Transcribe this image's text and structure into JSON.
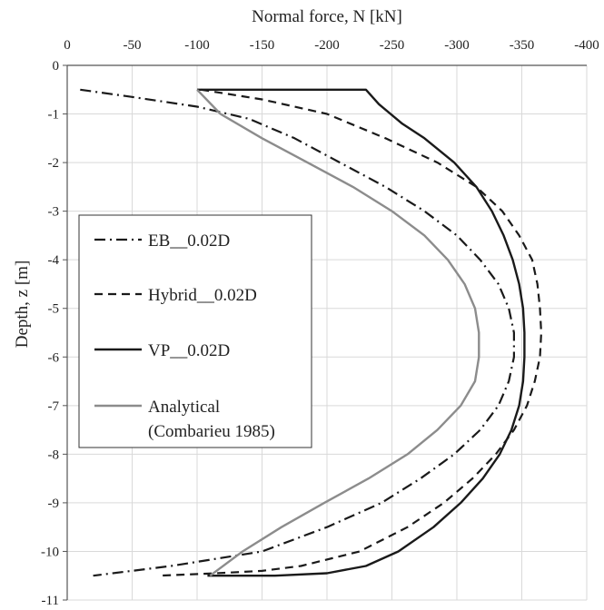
{
  "chart_data": {
    "type": "line",
    "xlabel": "Normal force, N [kN]",
    "ylabel": "Depth, z [m]",
    "xlim": [
      0,
      -400
    ],
    "ylim": [
      -11,
      0
    ],
    "x_axis_position": "top",
    "x_ticks": [
      0,
      -50,
      -100,
      -150,
      -200,
      -250,
      -300,
      -350,
      -400
    ],
    "y_ticks": [
      0,
      -1,
      -2,
      -3,
      -4,
      -5,
      -6,
      -7,
      -8,
      -9,
      -10,
      -11
    ],
    "grid": true,
    "legend_position": "left-center",
    "series": [
      {
        "name": "EB__0.02D",
        "style": "dash-dot",
        "color": "#1a1a1a",
        "points": [
          [
            -10,
            -0.5
          ],
          [
            -50,
            -0.65
          ],
          [
            -100,
            -0.85
          ],
          [
            -140,
            -1.1
          ],
          [
            -175,
            -1.5
          ],
          [
            -210,
            -2.0
          ],
          [
            -245,
            -2.5
          ],
          [
            -275,
            -3.0
          ],
          [
            -300,
            -3.5
          ],
          [
            -318,
            -4.0
          ],
          [
            -332,
            -4.5
          ],
          [
            -340,
            -5.0
          ],
          [
            -344,
            -5.5
          ],
          [
            -344,
            -6.0
          ],
          [
            -340,
            -6.5
          ],
          [
            -332,
            -7.0
          ],
          [
            -318,
            -7.5
          ],
          [
            -298,
            -8.0
          ],
          [
            -272,
            -8.5
          ],
          [
            -242,
            -9.0
          ],
          [
            -200,
            -9.5
          ],
          [
            -150,
            -10.0
          ],
          [
            -80,
            -10.3
          ],
          [
            -20,
            -10.5
          ]
        ]
      },
      {
        "name": "Hybrid__0.02D",
        "style": "dash",
        "color": "#1a1a1a",
        "points": [
          [
            -103,
            -0.5
          ],
          [
            -150,
            -0.7
          ],
          [
            -200,
            -1.0
          ],
          [
            -245,
            -1.5
          ],
          [
            -285,
            -2.0
          ],
          [
            -315,
            -2.5
          ],
          [
            -335,
            -3.0
          ],
          [
            -348,
            -3.5
          ],
          [
            -358,
            -4.0
          ],
          [
            -362,
            -4.5
          ],
          [
            -364,
            -5.0
          ],
          [
            -365,
            -5.5
          ],
          [
            -364,
            -6.0
          ],
          [
            -360,
            -6.5
          ],
          [
            -354,
            -7.0
          ],
          [
            -344,
            -7.5
          ],
          [
            -330,
            -8.0
          ],
          [
            -312,
            -8.5
          ],
          [
            -290,
            -9.0
          ],
          [
            -262,
            -9.5
          ],
          [
            -225,
            -10.0
          ],
          [
            -180,
            -10.3
          ],
          [
            -150,
            -10.4
          ],
          [
            -115,
            -10.45
          ],
          [
            -70,
            -10.5
          ]
        ]
      },
      {
        "name": "VP__0.02D",
        "style": "solid",
        "color": "#1a1a1a",
        "points": [
          [
            -100,
            -0.5
          ],
          [
            -230,
            -0.5
          ],
          [
            -240,
            -0.8
          ],
          [
            -258,
            -1.2
          ],
          [
            -275,
            -1.5
          ],
          [
            -298,
            -2.0
          ],
          [
            -315,
            -2.5
          ],
          [
            -327,
            -3.0
          ],
          [
            -336,
            -3.5
          ],
          [
            -343,
            -4.0
          ],
          [
            -348,
            -4.5
          ],
          [
            -351,
            -5.0
          ],
          [
            -352,
            -5.5
          ],
          [
            -352,
            -6.0
          ],
          [
            -351,
            -6.5
          ],
          [
            -348,
            -7.0
          ],
          [
            -342,
            -7.5
          ],
          [
            -333,
            -8.0
          ],
          [
            -320,
            -8.5
          ],
          [
            -303,
            -9.0
          ],
          [
            -282,
            -9.5
          ],
          [
            -255,
            -10.0
          ],
          [
            -230,
            -10.3
          ],
          [
            -200,
            -10.45
          ],
          [
            -160,
            -10.5
          ],
          [
            -108,
            -10.5
          ]
        ]
      },
      {
        "name": "Analytical\n(Combarieu 1985)",
        "style": "solid",
        "color": "#8c8c8c",
        "points": [
          [
            -100,
            -0.5
          ],
          [
            -118,
            -1.0
          ],
          [
            -150,
            -1.5
          ],
          [
            -185,
            -2.0
          ],
          [
            -220,
            -2.5
          ],
          [
            -250,
            -3.0
          ],
          [
            -275,
            -3.5
          ],
          [
            -293,
            -4.0
          ],
          [
            -306,
            -4.5
          ],
          [
            -314,
            -5.0
          ],
          [
            -317,
            -5.5
          ],
          [
            -317,
            -6.0
          ],
          [
            -314,
            -6.5
          ],
          [
            -303,
            -7.0
          ],
          [
            -285,
            -7.5
          ],
          [
            -262,
            -8.0
          ],
          [
            -232,
            -8.5
          ],
          [
            -198,
            -9.0
          ],
          [
            -165,
            -9.5
          ],
          [
            -135,
            -10.0
          ],
          [
            -110,
            -10.5
          ]
        ]
      }
    ]
  }
}
